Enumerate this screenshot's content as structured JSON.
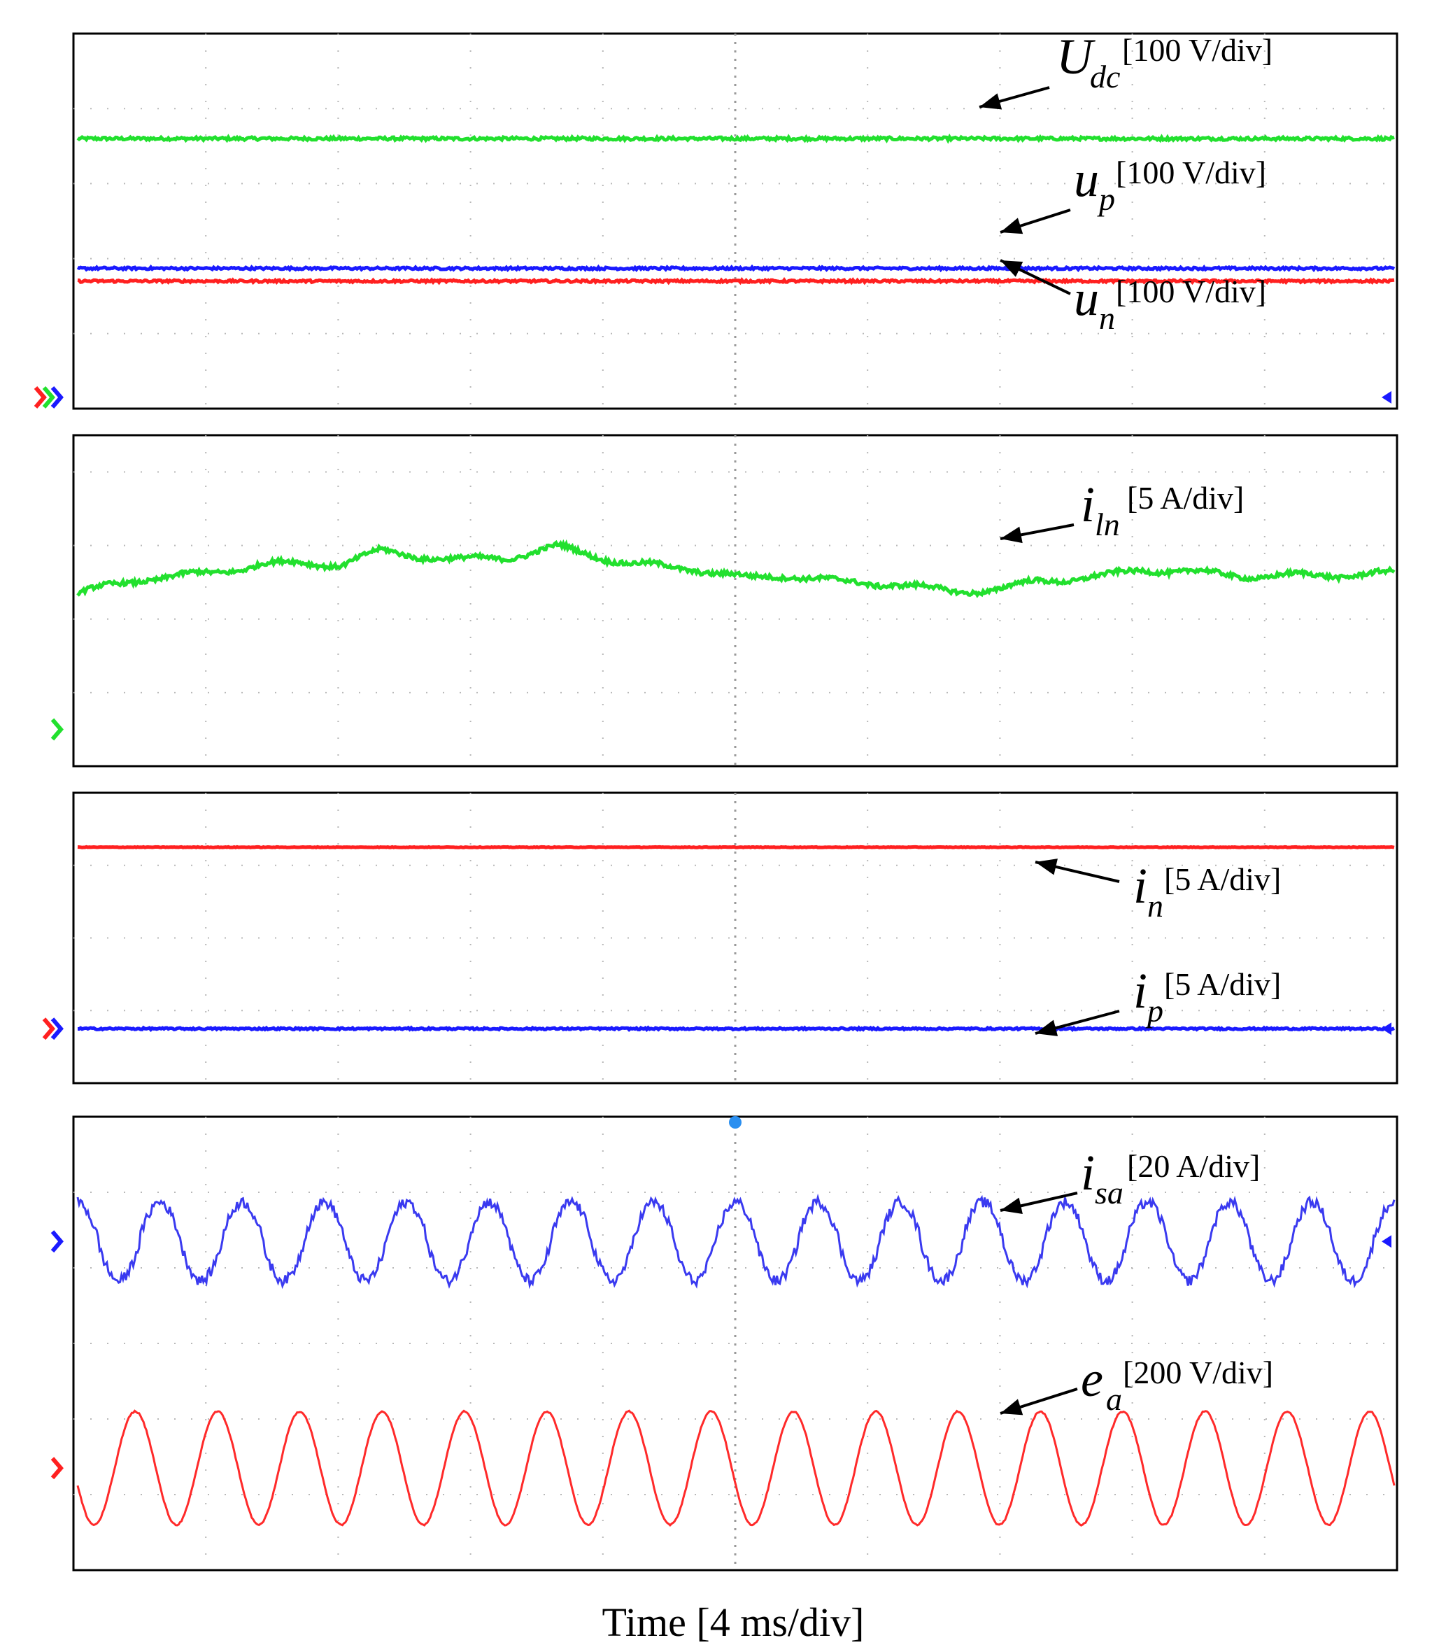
{
  "chart_data": [
    {
      "type": "line",
      "panel": 1,
      "series": [
        {
          "symbol": "U",
          "subscript": "dc",
          "scale": "[100 V/div]",
          "color": "#22e02e",
          "kind": "dc",
          "level_div": 3.6,
          "noise": 0.02
        },
        {
          "symbol": "u",
          "subscript": "p",
          "scale": "[100 V/div]",
          "color": "#1a1aff",
          "kind": "dc",
          "level_div": 1.87,
          "noise": 0.015
        },
        {
          "symbol": "u",
          "subscript": "n",
          "scale": "[100 V/div]",
          "color": "#ff2020",
          "kind": "dc",
          "level_div": 1.7,
          "noise": 0.015
        }
      ],
      "ref_markers": [
        {
          "color": "#ff2020"
        },
        {
          "color": "#22e02e"
        },
        {
          "color": "#1a1aff"
        }
      ],
      "right_markers": [
        {
          "color": "#1a1aff",
          "level_div": 0.0
        }
      ]
    },
    {
      "type": "line",
      "panel": 2,
      "series": [
        {
          "symbol": "i",
          "subscript": "ln",
          "scale": "[5 A/div]",
          "color": "#22e02e",
          "kind": "drift",
          "points": [
            [
              0,
              2.35
            ],
            [
              0.5,
              2.55
            ],
            [
              1,
              2.62
            ],
            [
              1.4,
              2.75
            ],
            [
              2,
              2.75
            ],
            [
              2.3,
              2.92
            ],
            [
              2.9,
              2.8
            ],
            [
              3.3,
              2.85
            ],
            [
              3.65,
              2.98
            ],
            [
              4.2,
              2.75
            ],
            [
              4.7,
              2.68
            ],
            [
              5.1,
              2.55
            ],
            [
              5.4,
              2.6
            ],
            [
              5.8,
              2.5
            ],
            [
              6.2,
              2.48
            ],
            [
              6.6,
              2.38
            ],
            [
              7.0,
              2.4
            ],
            [
              7.3,
              2.52
            ],
            [
              7.8,
              2.58
            ],
            [
              8.1,
              2.68
            ],
            [
              8.6,
              2.62
            ],
            [
              9,
              2.58
            ],
            [
              10,
              2.62
            ]
          ],
          "noise": 0.03
        }
      ],
      "ref_markers": [
        {
          "color": "#22e02e"
        }
      ],
      "right_markers": []
    },
    {
      "type": "line",
      "panel": 3,
      "series": [
        {
          "symbol": "i",
          "subscript": "n",
          "scale": "[5 A/div]",
          "color": "#ff2020",
          "kind": "dc",
          "level_div": 3.25,
          "noise": 0.004
        },
        {
          "symbol": "i",
          "subscript": "p",
          "scale": "[5 A/div]",
          "color": "#1a1aff",
          "kind": "dc",
          "level_div": 0.75,
          "noise": 0.012
        }
      ],
      "ref_markers": [
        {
          "color": "#ff2020"
        },
        {
          "color": "#1a1aff"
        }
      ],
      "right_markers": [
        {
          "color": "#1a1aff",
          "level_div": 0.75
        }
      ]
    },
    {
      "type": "line",
      "panel": 4,
      "series": [
        {
          "symbol": "i",
          "subscript": "sa",
          "scale": "[20 A/div]",
          "color": "#3a3af0",
          "kind": "sine",
          "center_div": 4.35,
          "amp_div": 0.52,
          "cycles": 16,
          "phase": 0.25,
          "noise": 0.07
        },
        {
          "symbol": "e",
          "subscript": "a",
          "scale": "[200 V/div]",
          "color": "#ff2a2a",
          "kind": "sine",
          "center_div": 1.35,
          "amp_div": 0.75,
          "cycles": 16,
          "phase": 0.55,
          "noise": 0.01
        }
      ],
      "ref_markers": [
        {
          "color": "#1a1aff"
        },
        {
          "color": "#ff2020"
        }
      ],
      "right_markers": [
        {
          "color": "#1a1aff",
          "level_div": 4.35
        }
      ]
    }
  ],
  "xlabel": "Time [4 ms/div]",
  "grid": true,
  "divisions": {
    "x": 10
  }
}
